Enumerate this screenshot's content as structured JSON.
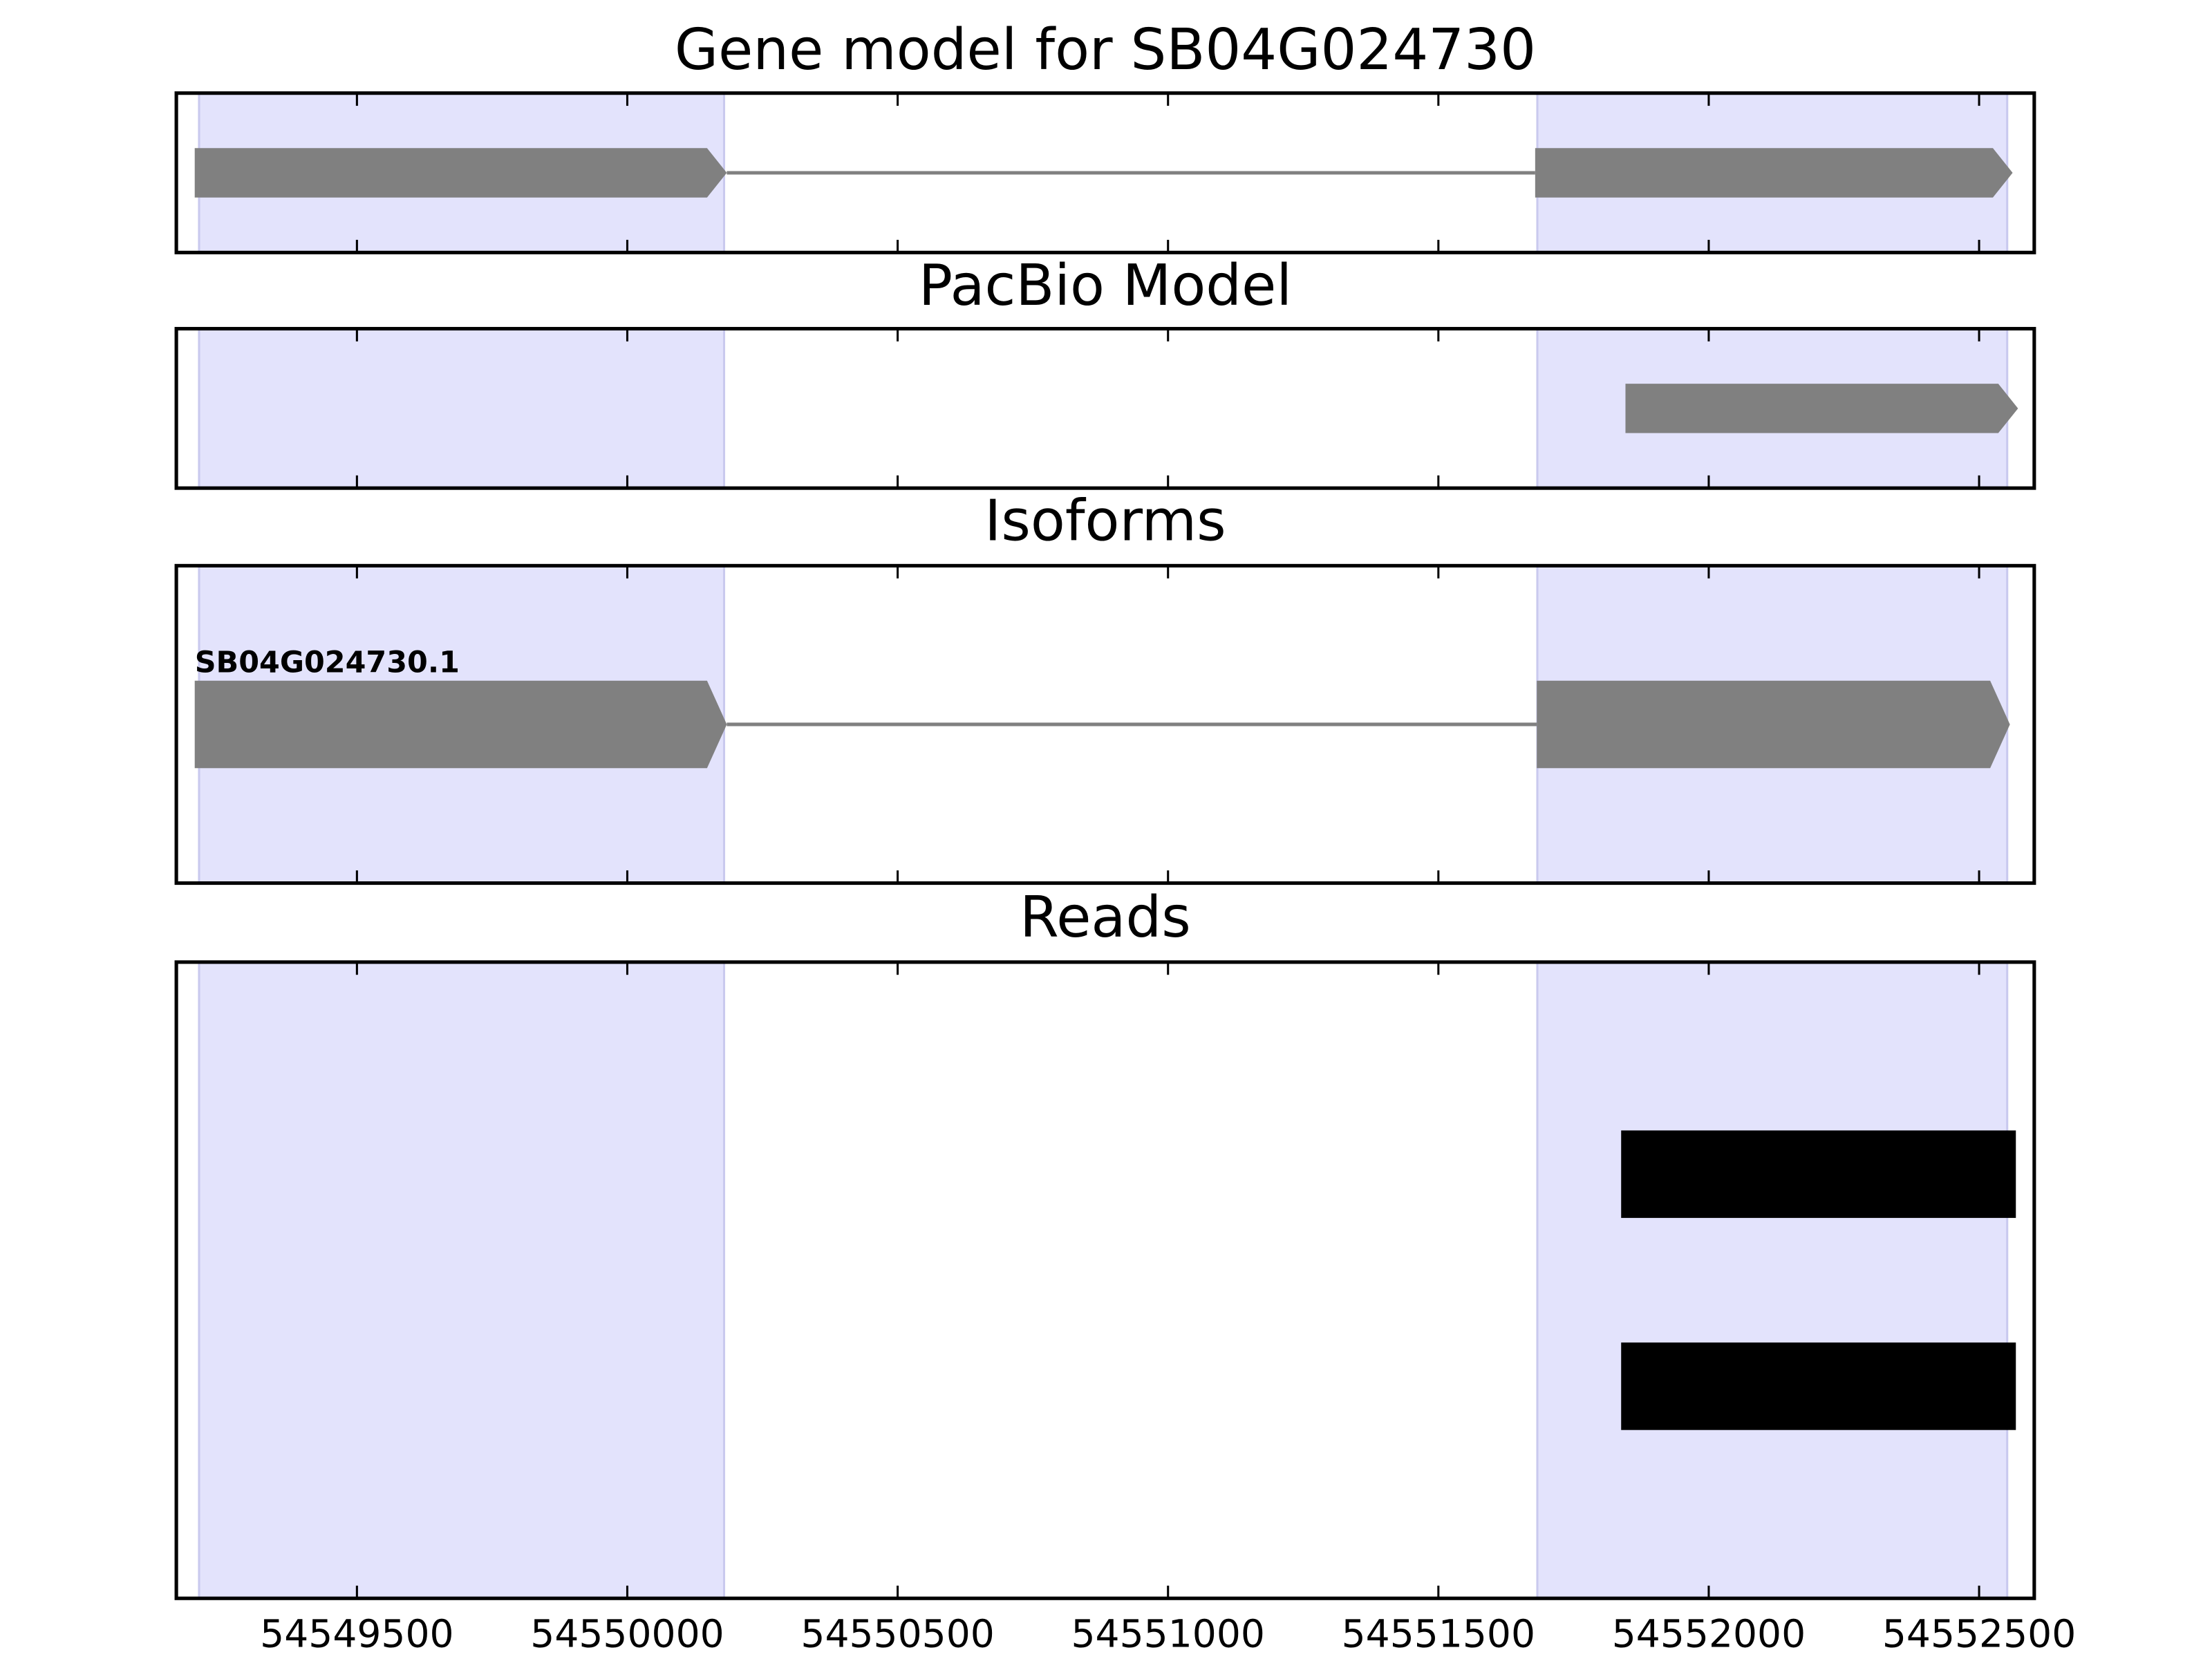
{
  "chart_data": {
    "type": "gene-tracks",
    "xlim": [
      54549166,
      54552602
    ],
    "xticks": [
      54549500,
      54550000,
      54550500,
      54551000,
      54551500,
      54552000,
      54552500
    ],
    "shaded_regions": [
      {
        "start": 54549208,
        "end": 54550179
      },
      {
        "start": 54551683,
        "end": 54552552
      }
    ],
    "shade_color": "#e3e3fc",
    "panels": [
      {
        "title": "Gene model for SB04G024730",
        "mark": "arrow",
        "color": "#808080",
        "introns": true,
        "tracks": [
          {
            "exons": [
              {
                "start": 54549200,
                "end": 54550184
              },
              {
                "start": 54551679,
                "end": 54552562
              }
            ]
          }
        ]
      },
      {
        "title": "PacBio Model",
        "mark": "arrow",
        "color": "#808080",
        "introns": true,
        "tracks": [
          {
            "exons": [
              {
                "start": 54551846,
                "end": 54552572
              }
            ]
          }
        ]
      },
      {
        "title": "Isoforms",
        "mark": "arrow",
        "color": "#808080",
        "introns": true,
        "tracks": [
          {
            "name": "SB04G024730.1",
            "exons": [
              {
                "start": 54549200,
                "end": 54550184
              },
              {
                "start": 54551682,
                "end": 54552557
              }
            ]
          }
        ]
      },
      {
        "title": "Reads",
        "mark": "block",
        "color": "#000000",
        "introns": false,
        "tracks": [
          {
            "exons": [
              {
                "start": 54551838,
                "end": 54552568
              }
            ]
          },
          {
            "exons": [
              {
                "start": 54551838,
                "end": 54552568
              }
            ]
          }
        ]
      }
    ]
  }
}
